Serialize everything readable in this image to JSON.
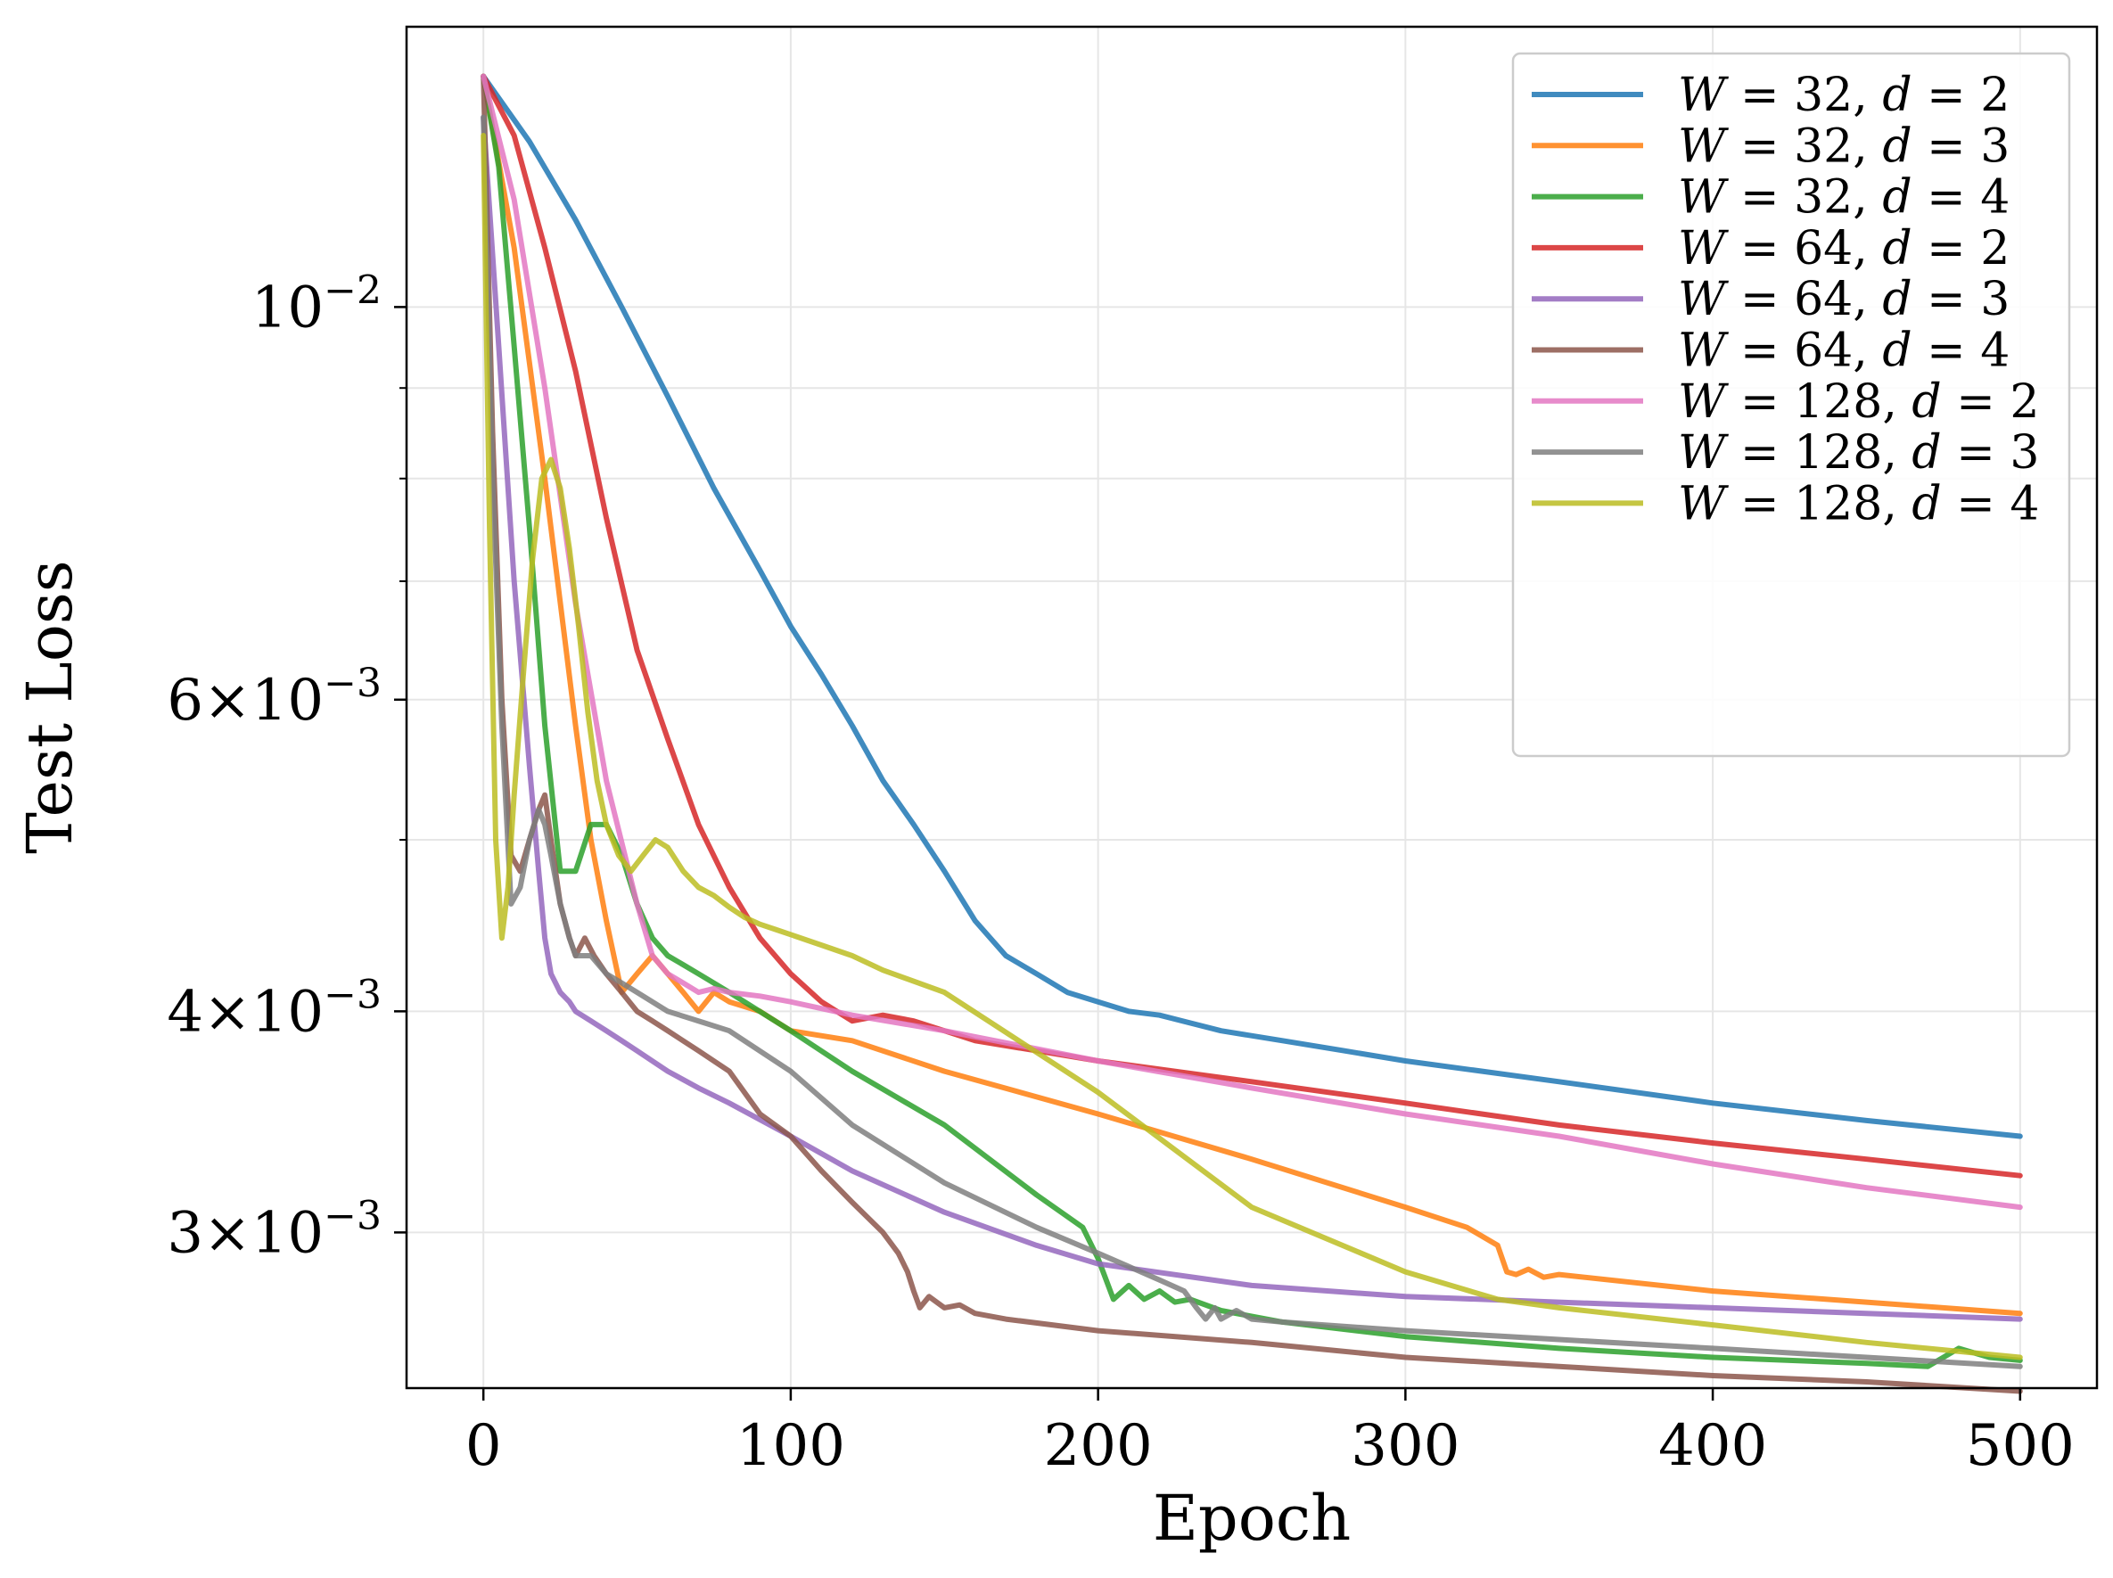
{
  "chart_data": {
    "type": "line",
    "title": "",
    "xlabel": "Epoch",
    "ylabel": "Test Loss",
    "yscale": "log",
    "xlim": [
      -25,
      525
    ],
    "ylim": [
      0.00245,
      0.0144
    ],
    "grid": true,
    "legend_position": "top-right",
    "x_ticks": [
      {
        "value": 0,
        "label": "0"
      },
      {
        "value": 100,
        "label": "100"
      },
      {
        "value": 200,
        "label": "200"
      },
      {
        "value": 300,
        "label": "300"
      },
      {
        "value": 400,
        "label": "400"
      },
      {
        "value": 500,
        "label": "500"
      }
    ],
    "y_ticks": [
      {
        "value": 0.003,
        "base": "3",
        "exp": "−3"
      },
      {
        "value": 0.004,
        "base": "4",
        "exp": "−3"
      },
      {
        "value": 0.006,
        "base": "6",
        "exp": "−3"
      },
      {
        "value": 0.01,
        "base": "",
        "exp": "−2"
      }
    ],
    "minor_y_ticks": [
      0.005,
      0.007,
      0.008,
      0.009
    ],
    "series": [
      {
        "name": "W=32,d=2",
        "symbol": "W",
        "w_eq": " = 32, ",
        "d_sym": "d",
        "d_eq": " = 2",
        "color": "#1f77b4",
        "x": [
          0,
          15,
          30,
          45,
          60,
          75,
          90,
          100,
          110,
          120,
          130,
          140,
          150,
          160,
          170,
          180,
          190,
          200,
          210,
          220,
          240,
          260,
          280,
          300,
          350,
          400,
          450,
          500
        ],
        "y": [
          0.0135,
          0.0124,
          0.0112,
          0.01,
          0.0089,
          0.0079,
          0.0071,
          0.0066,
          0.0062,
          0.0058,
          0.0054,
          0.0051,
          0.0048,
          0.0045,
          0.0043,
          0.0042,
          0.0041,
          0.00405,
          0.004,
          0.00398,
          0.0039,
          0.00385,
          0.0038,
          0.00375,
          0.00365,
          0.00355,
          0.00347,
          0.0034
        ]
      },
      {
        "name": "W=32,d=3",
        "symbol": "W",
        "w_eq": " = 32, ",
        "d_sym": "d",
        "d_eq": " = 3",
        "color": "#ff7f0e",
        "x": [
          0,
          10,
          20,
          30,
          35,
          40,
          45,
          50,
          55,
          60,
          65,
          70,
          75,
          80,
          90,
          100,
          120,
          150,
          200,
          250,
          300,
          320,
          330,
          333,
          336,
          340,
          345,
          350,
          400,
          450,
          500
        ],
        "y": [
          0.0135,
          0.0108,
          0.008,
          0.0058,
          0.005,
          0.0045,
          0.0041,
          0.0042,
          0.0043,
          0.0042,
          0.0041,
          0.004,
          0.0041,
          0.00405,
          0.004,
          0.0039,
          0.00385,
          0.0037,
          0.0035,
          0.0033,
          0.0031,
          0.00302,
          0.00295,
          0.00285,
          0.00284,
          0.00286,
          0.00283,
          0.00284,
          0.00278,
          0.00274,
          0.0027
        ]
      },
      {
        "name": "W=32,d=4",
        "symbol": "W",
        "w_eq": " = 32, ",
        "d_sym": "d",
        "d_eq": " = 4",
        "color": "#2ca02c",
        "x": [
          0,
          5,
          10,
          15,
          20,
          25,
          30,
          35,
          40,
          45,
          50,
          55,
          60,
          65,
          70,
          80,
          100,
          120,
          150,
          180,
          195,
          200,
          205,
          210,
          215,
          220,
          225,
          230,
          240,
          260,
          300,
          350,
          400,
          450,
          470,
          480,
          490,
          500
        ],
        "y": [
          0.0135,
          0.012,
          0.0095,
          0.0075,
          0.0058,
          0.0048,
          0.0048,
          0.0051,
          0.0051,
          0.0049,
          0.0046,
          0.0044,
          0.0043,
          0.00425,
          0.0042,
          0.0041,
          0.0039,
          0.0037,
          0.00345,
          0.00315,
          0.00302,
          0.0029,
          0.00275,
          0.0028,
          0.00275,
          0.00278,
          0.00274,
          0.00275,
          0.00271,
          0.00267,
          0.00262,
          0.00258,
          0.00255,
          0.00253,
          0.00252,
          0.00258,
          0.00255,
          0.00254
        ]
      },
      {
        "name": "W=64,d=2",
        "symbol": "W",
        "w_eq": " = 64, ",
        "d_sym": "d",
        "d_eq": " = 2",
        "color": "#d62728",
        "x": [
          0,
          10,
          20,
          30,
          40,
          50,
          60,
          70,
          80,
          90,
          100,
          110,
          115,
          120,
          130,
          140,
          150,
          160,
          180,
          200,
          250,
          300,
          350,
          400,
          450,
          500
        ],
        "y": [
          0.0135,
          0.0125,
          0.0108,
          0.0092,
          0.0076,
          0.0064,
          0.0057,
          0.0051,
          0.0047,
          0.0044,
          0.0042,
          0.00405,
          0.004,
          0.00395,
          0.00398,
          0.00395,
          0.0039,
          0.00385,
          0.0038,
          0.00375,
          0.00365,
          0.00355,
          0.00345,
          0.00337,
          0.0033,
          0.00323
        ]
      },
      {
        "name": "W=64,d=3",
        "symbol": "W",
        "w_eq": " = 64, ",
        "d_sym": "d",
        "d_eq": " = 3",
        "color": "#9467bd",
        "x": [
          0,
          5,
          10,
          15,
          18,
          20,
          22,
          25,
          28,
          30,
          35,
          40,
          45,
          50,
          60,
          70,
          80,
          100,
          120,
          150,
          180,
          200,
          250,
          300,
          350,
          400,
          450,
          500
        ],
        "y": [
          0.0128,
          0.0095,
          0.007,
          0.0055,
          0.0048,
          0.0044,
          0.0042,
          0.0041,
          0.00405,
          0.004,
          0.00395,
          0.0039,
          0.00385,
          0.0038,
          0.0037,
          0.00362,
          0.00355,
          0.0034,
          0.00325,
          0.00308,
          0.00295,
          0.00288,
          0.0028,
          0.00276,
          0.00274,
          0.00272,
          0.0027,
          0.00268
        ]
      },
      {
        "name": "W=64,d=4",
        "symbol": "W",
        "w_eq": " = 64, ",
        "d_sym": "d",
        "d_eq": " = 4",
        "color": "#8c564b",
        "x": [
          0,
          3,
          6,
          9,
          12,
          15,
          18,
          20,
          22,
          25,
          28,
          30,
          33,
          36,
          40,
          45,
          50,
          55,
          60,
          70,
          80,
          90,
          100,
          110,
          120,
          130,
          135,
          138,
          140,
          142,
          145,
          150,
          155,
          160,
          170,
          200,
          250,
          300,
          350,
          400,
          450,
          500
        ],
        "y": [
          0.0135,
          0.0085,
          0.006,
          0.0049,
          0.0048,
          0.005,
          0.0052,
          0.0053,
          0.005,
          0.0046,
          0.0044,
          0.0043,
          0.0044,
          0.0043,
          0.0042,
          0.0041,
          0.004,
          0.00395,
          0.0039,
          0.0038,
          0.0037,
          0.0035,
          0.0034,
          0.00325,
          0.00312,
          0.003,
          0.00292,
          0.00285,
          0.00278,
          0.00272,
          0.00276,
          0.00272,
          0.00273,
          0.0027,
          0.00268,
          0.00264,
          0.0026,
          0.00255,
          0.00252,
          0.00249,
          0.00247,
          0.00244
        ]
      },
      {
        "name": "W=128,d=2",
        "symbol": "W",
        "w_eq": " = 128, ",
        "d_sym": "d",
        "d_eq": " = 2",
        "color": "#e377c2",
        "x": [
          0,
          10,
          20,
          30,
          40,
          50,
          55,
          60,
          65,
          70,
          75,
          80,
          90,
          100,
          120,
          150,
          200,
          250,
          300,
          350,
          400,
          450,
          500
        ],
        "y": [
          0.0135,
          0.0115,
          0.009,
          0.0068,
          0.0054,
          0.0046,
          0.0043,
          0.0042,
          0.00415,
          0.0041,
          0.00412,
          0.0041,
          0.00408,
          0.00405,
          0.00398,
          0.0039,
          0.00375,
          0.00362,
          0.0035,
          0.0034,
          0.00328,
          0.00318,
          0.0031
        ]
      },
      {
        "name": "W=128,d=3",
        "symbol": "W",
        "w_eq": " = 128, ",
        "d_sym": "d",
        "d_eq": " = 3",
        "color": "#7f7f7f",
        "x": [
          0,
          3,
          6,
          9,
          12,
          15,
          18,
          20,
          22,
          25,
          28,
          30,
          35,
          40,
          45,
          50,
          60,
          70,
          80,
          100,
          120,
          150,
          180,
          200,
          220,
          228,
          232,
          235,
          238,
          240,
          245,
          250,
          260,
          300,
          350,
          400,
          450,
          500
        ],
        "y": [
          0.0128,
          0.008,
          0.0058,
          0.0046,
          0.0047,
          0.005,
          0.0052,
          0.0051,
          0.0049,
          0.0046,
          0.0044,
          0.0043,
          0.0043,
          0.0042,
          0.00415,
          0.0041,
          0.004,
          0.00395,
          0.0039,
          0.0037,
          0.00345,
          0.0032,
          0.00302,
          0.00292,
          0.00282,
          0.00278,
          0.00272,
          0.00268,
          0.00272,
          0.00268,
          0.00271,
          0.00268,
          0.00267,
          0.00264,
          0.00261,
          0.00258,
          0.00255,
          0.00252
        ]
      },
      {
        "name": "W=128,d=4",
        "symbol": "W",
        "w_eq": " = 128, ",
        "d_sym": "d",
        "d_eq": " = 4",
        "color": "#bcbd22",
        "x": [
          0,
          2,
          4,
          6,
          8,
          10,
          13,
          16,
          19,
          22,
          25,
          28,
          31,
          34,
          37,
          40,
          44,
          48,
          52,
          56,
          60,
          65,
          70,
          75,
          80,
          85,
          90,
          95,
          100,
          110,
          120,
          130,
          150,
          200,
          250,
          300,
          330,
          350,
          400,
          450,
          500
        ],
        "y": [
          0.0125,
          0.0075,
          0.005,
          0.0044,
          0.0047,
          0.0053,
          0.0062,
          0.0072,
          0.008,
          0.0082,
          0.0079,
          0.0073,
          0.0066,
          0.0059,
          0.0054,
          0.0051,
          0.0049,
          0.0048,
          0.0049,
          0.005,
          0.00495,
          0.0048,
          0.0047,
          0.00465,
          0.00458,
          0.00452,
          0.00448,
          0.00445,
          0.00442,
          0.00436,
          0.0043,
          0.00422,
          0.0041,
          0.0036,
          0.0031,
          0.00285,
          0.00275,
          0.00272,
          0.00266,
          0.0026,
          0.00255
        ]
      }
    ]
  }
}
